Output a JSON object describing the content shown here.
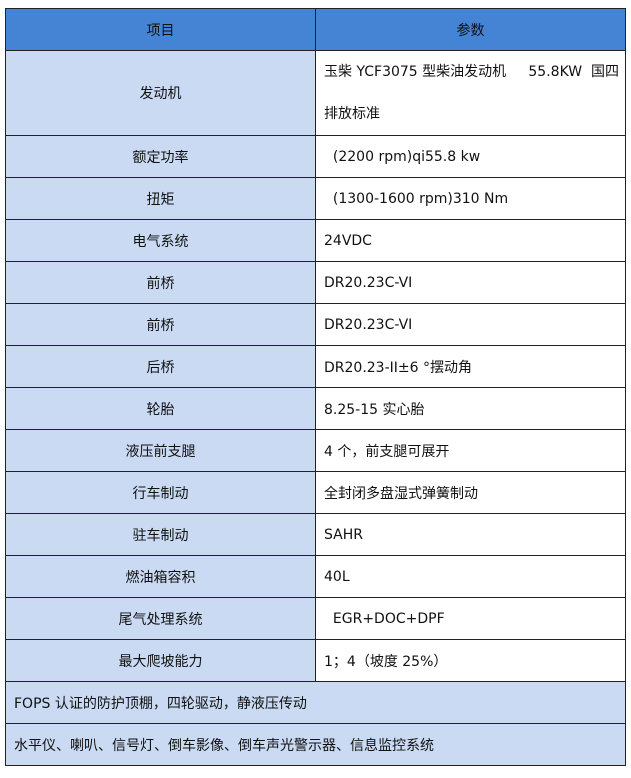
{
  "header": {
    "item": "项目",
    "param": "参数"
  },
  "rows": [
    {
      "item": "发动机",
      "value": "玉柴 YCF3075 型柴油发动机     55.8KW  国四排放标准"
    },
    {
      "item": "额定功率",
      "value": "  (2200 rpm)qi55.8 kw"
    },
    {
      "item": "扭矩",
      "value": "  (1300-1600 rpm)310 Nm"
    },
    {
      "item": "电气系统",
      "value": "24VDC"
    },
    {
      "item": "前桥",
      "value": "DR20.23C-VI"
    },
    {
      "item": "前桥",
      "value": "DR20.23C-VI"
    },
    {
      "item": "后桥",
      "value": "DR20.23-II±6 °摆动角"
    },
    {
      "item": "轮胎",
      "value": "8.25-15 实心胎"
    },
    {
      "item": "液压前支腿",
      "value": "4 个，前支腿可展开"
    },
    {
      "item": "行车制动",
      "value": "全封闭多盘湿式弹簧制动"
    },
    {
      "item": "驻车制动",
      "value": "SAHR"
    },
    {
      "item": "燃油箱容积",
      "value": "40L"
    },
    {
      "item": "尾气处理系统",
      "value": "  EGR+DOC+DPF"
    },
    {
      "item": "最大爬坡能力",
      "value": "1；4（坡度 25%）"
    }
  ],
  "notes": [
    "FOPS 认证的防护顶棚，四轮驱动，静液压传动",
    "水平仪、喇叭、信号灯、倒车影像、倒车声光警示器、信息监控系统"
  ],
  "colors": {
    "header": "#4583d4",
    "key_column": "#c9daf2"
  }
}
